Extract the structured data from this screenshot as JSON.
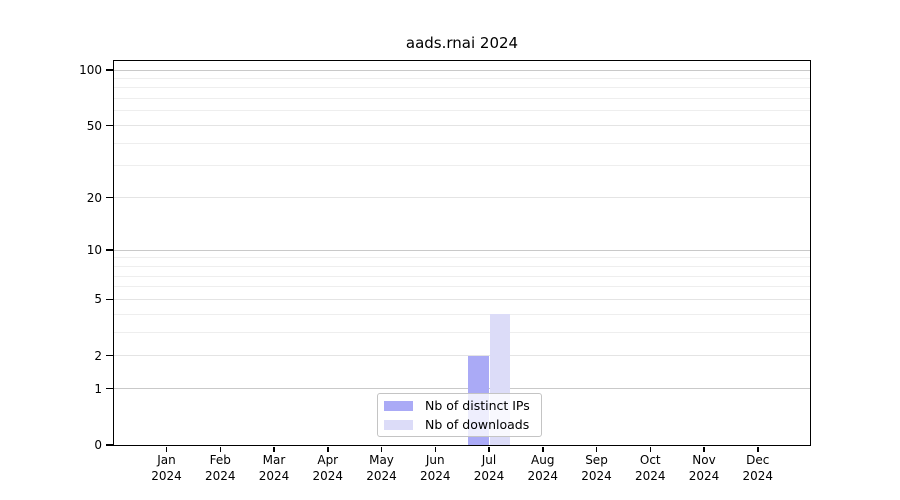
{
  "title": "aads.rnai 2024",
  "chart_data": {
    "type": "bar",
    "title": "aads.rnai 2024",
    "categories": [
      "Jan",
      "Feb",
      "Mar",
      "Apr",
      "May",
      "Jun",
      "Jul",
      "Aug",
      "Sep",
      "Oct",
      "Nov",
      "Dec"
    ],
    "x_tick_year": "2024",
    "series": [
      {
        "name": "Nb of distinct IPs",
        "color": "#aaaaf6",
        "values": [
          0,
          0,
          0,
          0,
          0,
          0,
          2,
          0,
          0,
          0,
          0,
          0
        ]
      },
      {
        "name": "Nb of downloads",
        "color": "#dcdcf8",
        "values": [
          0,
          0,
          0,
          0,
          0,
          0,
          4,
          0,
          0,
          0,
          0,
          0
        ]
      }
    ],
    "y_scale": "log10(value+1)",
    "y_tick_values": [
      0,
      1,
      2,
      5,
      10,
      20,
      50,
      100
    ],
    "y_tick_labels": [
      "0",
      "1",
      "2",
      "5",
      "10",
      "20",
      "50",
      "100"
    ],
    "y_minor_gridlines": [
      3,
      4,
      6,
      7,
      8,
      9,
      30,
      40,
      60,
      70,
      80,
      90
    ],
    "y_decade_gridlines": [
      1,
      10,
      100
    ],
    "ylim": [
      0,
      113
    ],
    "grid": "horizontal",
    "legend_position": "bottom-center"
  },
  "colors": {
    "bar_distinct_ips": "#aaaaf6",
    "bar_downloads": "#dcdcf8",
    "grid_decade": "#c9c9c9",
    "grid_labeled": "#e4e4e4",
    "grid_minor": "#eeeeee",
    "axis": "#000000",
    "text": "#000000",
    "legend_border": "#c4c4c4",
    "background": "#ffffff"
  }
}
